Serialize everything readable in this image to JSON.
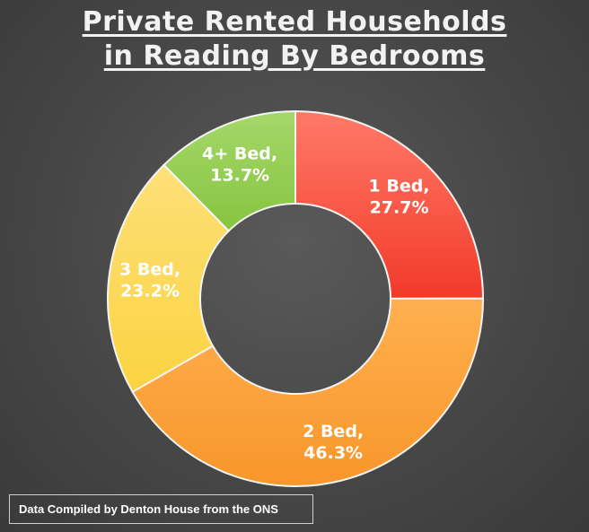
{
  "chart_data": {
    "type": "pie",
    "variant": "donut",
    "title_lines": [
      "Private Rented Households",
      "in Reading By Bedrooms"
    ],
    "categories": [
      "1 Bed",
      "2 Bed",
      "3 Bed",
      "4+ Bed"
    ],
    "values": [
      27.7,
      46.3,
      23.2,
      13.7
    ],
    "value_labels": [
      "27.7%",
      "46.3%",
      "23.2%",
      "13.7%"
    ],
    "colors": [
      "#f23a2a",
      "#f7962a",
      "#fbd341",
      "#86c440"
    ],
    "legend": "none"
  },
  "source_note": "Data Compiled by Denton House from the ONS"
}
